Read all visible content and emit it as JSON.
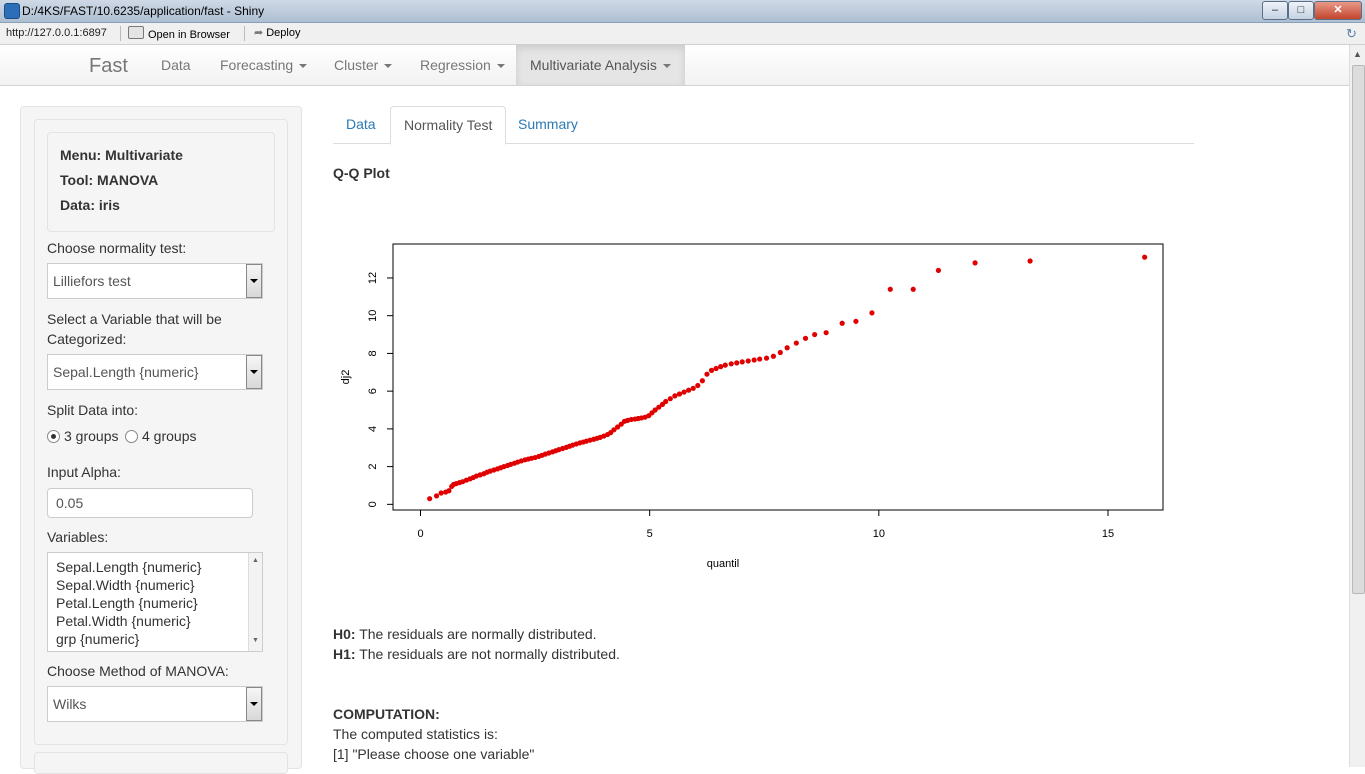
{
  "window": {
    "title": "D:/4KS/FAST/10.6235/application/fast - Shiny"
  },
  "toolbar": {
    "url": "http://127.0.0.1:6897",
    "open_browser": "Open in Browser",
    "deploy": "Deploy"
  },
  "nav": {
    "brand": "Fast",
    "items": [
      {
        "label": "Data",
        "dropdown": false
      },
      {
        "label": "Forecasting",
        "dropdown": true
      },
      {
        "label": "Cluster",
        "dropdown": true
      },
      {
        "label": "Regression",
        "dropdown": true
      },
      {
        "label": "Multivariate Analysis",
        "dropdown": true,
        "active": true
      }
    ]
  },
  "sidebar": {
    "info": {
      "menu": "Menu: Multivariate",
      "tool": "Tool: MANOVA",
      "data": "Data: iris"
    },
    "normality_label": "Choose normality test:",
    "normality_value": "Lilliefors test",
    "categorize_label_1": "Select a Variable that will be",
    "categorize_label_2": "Categorized:",
    "categorize_value": "Sepal.Length {numeric}",
    "split_label": "Split Data into:",
    "split_options": [
      "3 groups",
      "4 groups"
    ],
    "split_selected": "3 groups",
    "alpha_label": "Input Alpha:",
    "alpha_value": "0.05",
    "variables_label": "Variables:",
    "variables": [
      "Sepal.Length {numeric}",
      "Sepal.Width {numeric}",
      "Petal.Length {numeric}",
      "Petal.Width {numeric}",
      "grp {numeric}"
    ],
    "method_label": "Choose Method of MANOVA:",
    "method_value": "Wilks"
  },
  "tabs": [
    "Data",
    "Normality Test",
    "Summary"
  ],
  "active_tab": "Normality Test",
  "plot_title": "Q-Q Plot",
  "chart_data": {
    "type": "scatter",
    "xlabel": "quantil",
    "ylabel": "dj2",
    "xlim": [
      -0.6,
      16.2
    ],
    "ylim": [
      -0.3,
      13.8
    ],
    "xticks": [
      "0",
      "5",
      "10",
      "15"
    ],
    "yticks": [
      "0",
      "2",
      "4",
      "6",
      "8",
      "10",
      "12"
    ],
    "point_color": "#e00000",
    "grid": false,
    "x": [
      0.2,
      0.35,
      0.45,
      0.55,
      0.62,
      0.68,
      0.72,
      0.78,
      0.85,
      0.92,
      1.0,
      1.08,
      1.15,
      1.22,
      1.3,
      1.38,
      1.45,
      1.52,
      1.6,
      1.68,
      1.75,
      1.82,
      1.9,
      1.97,
      2.05,
      2.12,
      2.2,
      2.28,
      2.35,
      2.42,
      2.5,
      2.58,
      2.65,
      2.72,
      2.8,
      2.88,
      2.95,
      3.02,
      3.1,
      3.18,
      3.25,
      3.32,
      3.4,
      3.48,
      3.55,
      3.62,
      3.7,
      3.78,
      3.85,
      3.92,
      4.0,
      4.08,
      4.15,
      4.22,
      4.3,
      4.38,
      4.45,
      4.52,
      4.6,
      4.68,
      4.75,
      4.82,
      4.9,
      4.98,
      5.05,
      5.12,
      5.2,
      5.28,
      5.35,
      5.45,
      5.55,
      5.65,
      5.75,
      5.85,
      5.95,
      6.05,
      6.15,
      6.25,
      6.35,
      6.45,
      6.55,
      6.65,
      6.78,
      6.9,
      7.02,
      7.15,
      7.28,
      7.4,
      7.55,
      7.7,
      7.85,
      8.0,
      8.2,
      8.4,
      8.6,
      8.85,
      9.2,
      9.5,
      9.85,
      10.25,
      10.75,
      11.3,
      12.1,
      13.3,
      15.8
    ],
    "y": [
      0.3,
      0.45,
      0.6,
      0.65,
      0.72,
      0.95,
      1.05,
      1.1,
      1.15,
      1.2,
      1.28,
      1.35,
      1.42,
      1.5,
      1.56,
      1.62,
      1.7,
      1.76,
      1.82,
      1.88,
      1.94,
      2.0,
      2.06,
      2.12,
      2.18,
      2.24,
      2.3,
      2.36,
      2.4,
      2.44,
      2.48,
      2.54,
      2.6,
      2.66,
      2.72,
      2.78,
      2.84,
      2.9,
      2.96,
      3.02,
      3.08,
      3.14,
      3.2,
      3.26,
      3.3,
      3.35,
      3.4,
      3.45,
      3.5,
      3.55,
      3.62,
      3.7,
      3.8,
      3.95,
      4.1,
      4.25,
      4.4,
      4.45,
      4.5,
      4.52,
      4.55,
      4.58,
      4.62,
      4.7,
      4.85,
      5.0,
      5.15,
      5.3,
      5.45,
      5.6,
      5.75,
      5.85,
      5.95,
      6.05,
      6.15,
      6.3,
      6.55,
      6.9,
      7.1,
      7.2,
      7.3,
      7.38,
      7.45,
      7.5,
      7.55,
      7.6,
      7.65,
      7.7,
      7.75,
      7.85,
      8.05,
      8.3,
      8.55,
      8.8,
      9.0,
      9.1,
      9.6,
      9.7,
      10.15,
      11.4,
      11.4,
      12.4,
      12.8,
      12.9,
      13.1
    ]
  },
  "hypothesis": {
    "h0_label": "H0:",
    "h0_text": " The residuals are normally distributed.",
    "h1_label": "H1:",
    "h1_text": " The residuals are not normally distributed."
  },
  "computation": {
    "heading": "COMPUTATION:",
    "line1": "The computed statistics is:",
    "line2": "[1] \"Please choose one variable\""
  }
}
